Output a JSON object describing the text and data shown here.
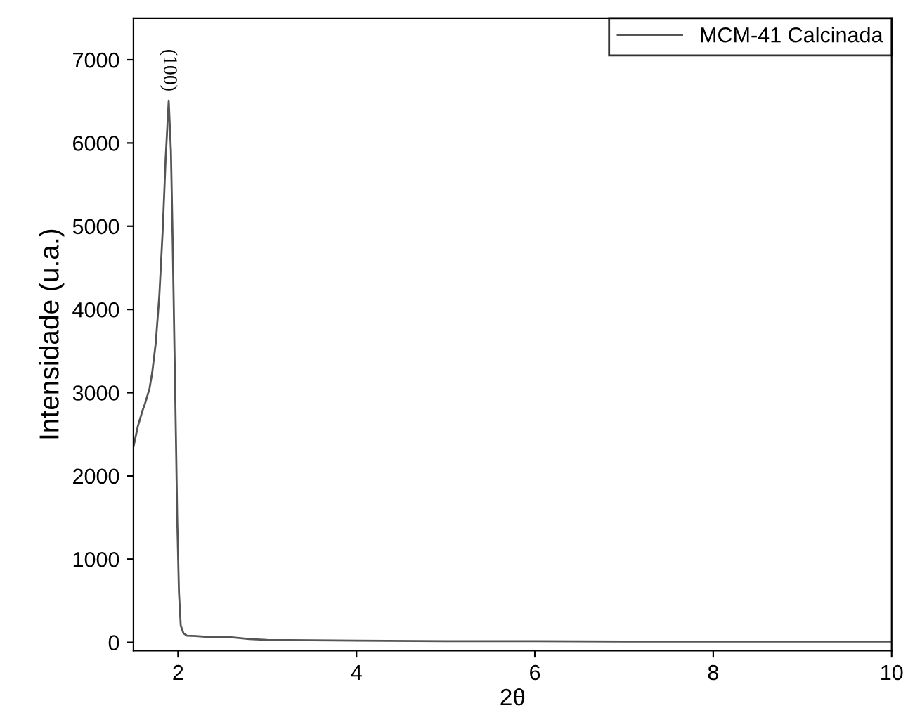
{
  "chart_data": {
    "type": "line",
    "xlabel": "2θ",
    "ylabel": "Intensidade (u.a.)",
    "xlim": [
      1.5,
      10
    ],
    "ylim": [
      -100,
      7500
    ],
    "xticks": [
      2,
      4,
      6,
      8,
      10
    ],
    "yticks": [
      0,
      1000,
      2000,
      3000,
      4000,
      5000,
      6000,
      7000
    ],
    "legend": "top right",
    "grid": false,
    "annotations": [
      {
        "text": "(100)",
        "x": 1.895,
        "y": 6550
      }
    ],
    "series": [
      {
        "name": "MCM-41 Calcinada",
        "color": "#555555",
        "x": [
          1.5,
          1.55,
          1.6,
          1.63,
          1.68,
          1.71,
          1.75,
          1.79,
          1.83,
          1.86,
          1.895,
          1.92,
          1.94,
          1.96,
          1.98,
          1.99,
          2.01,
          2.03,
          2.06,
          2.1,
          2.2,
          2.4,
          2.6,
          2.8,
          3.0,
          3.5,
          4,
          5,
          6,
          7,
          8,
          9,
          10
        ],
        "values": [
          2350,
          2600,
          2780,
          2870,
          3050,
          3240,
          3600,
          4170,
          5000,
          5800,
          6510,
          5900,
          4800,
          3500,
          2200,
          1500,
          600,
          200,
          110,
          80,
          75,
          60,
          60,
          40,
          30,
          25,
          20,
          15,
          15,
          10,
          10,
          10,
          10
        ]
      }
    ]
  }
}
